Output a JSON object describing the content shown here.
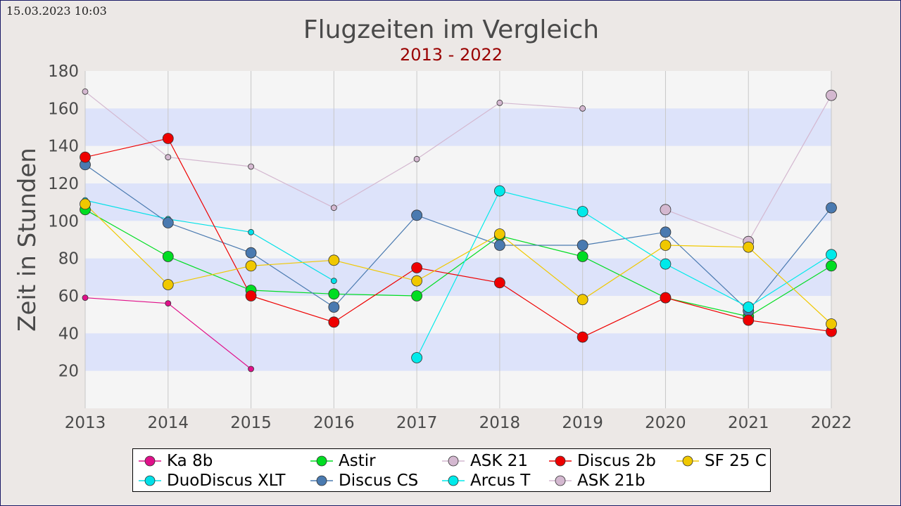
{
  "timestamp": "15.03.2023 10:03",
  "chart_data": {
    "type": "line",
    "title": "Flugzeiten im Vergleich",
    "subtitle": "2013 - 2022",
    "xlabel": "",
    "ylabel": "Zeit in Stunden",
    "categories": [
      "2013",
      "2014",
      "2015",
      "2016",
      "2017",
      "2018",
      "2019",
      "2020",
      "2021",
      "2022"
    ],
    "ylim": [
      0,
      180
    ],
    "yticks": [
      20,
      40,
      60,
      80,
      100,
      120,
      140,
      160,
      180
    ],
    "grid": "vertical lines, alternating horizontal bands",
    "legend_position": "bottom",
    "series": [
      {
        "name": "Ka 8b",
        "color": "#e0108a",
        "marker": "small",
        "values": [
          59,
          56,
          21,
          null,
          null,
          null,
          null,
          null,
          null,
          null
        ]
      },
      {
        "name": "DuoDiscus XLT",
        "color": "#00e0e8",
        "marker": "small",
        "values": [
          111,
          101,
          94,
          68,
          null,
          null,
          null,
          null,
          null,
          null
        ]
      },
      {
        "name": "Astir",
        "color": "#00dd22",
        "marker": "large",
        "values": [
          106,
          81,
          63,
          61,
          60,
          92,
          81,
          59,
          49,
          76
        ]
      },
      {
        "name": "Discus CS",
        "color": "#4a7ab0",
        "marker": "large",
        "values": [
          130,
          99,
          83,
          54,
          103,
          87,
          87,
          94,
          52,
          107
        ]
      },
      {
        "name": "ASK 21",
        "color": "#d4b8d0",
        "marker": "small",
        "values": [
          169,
          134,
          129,
          107,
          133,
          163,
          160,
          null,
          null,
          null
        ]
      },
      {
        "name": "Arcus T",
        "color": "#00eaea",
        "marker": "large",
        "values": [
          null,
          null,
          null,
          null,
          27,
          116,
          105,
          77,
          54,
          82
        ]
      },
      {
        "name": "Discus 2b",
        "color": "#ee0000",
        "marker": "large",
        "values": [
          134,
          144,
          60,
          46,
          75,
          67,
          38,
          59,
          47,
          41
        ]
      },
      {
        "name": "ASK 21b",
        "color": "#d4b8d0",
        "marker": "large",
        "values": [
          null,
          null,
          null,
          null,
          null,
          null,
          null,
          106,
          89,
          167
        ]
      },
      {
        "name": "SF 25 C",
        "color": "#f0c800",
        "marker": "large",
        "values": [
          109,
          66,
          76,
          79,
          68,
          93,
          58,
          87,
          86,
          45
        ]
      }
    ]
  },
  "legend": [
    {
      "label": "Ka 8b",
      "color": "#e0108a"
    },
    {
      "label": "Astir",
      "color": "#00dd22"
    },
    {
      "label": "ASK 21",
      "color": "#d4b8d0"
    },
    {
      "label": "Discus 2b",
      "color": "#ee0000"
    },
    {
      "label": "SF 25 C",
      "color": "#f0c800"
    },
    {
      "label": "DuoDiscus XLT",
      "color": "#00e0e8"
    },
    {
      "label": "Discus CS",
      "color": "#4a7ab0"
    },
    {
      "label": "Arcus T",
      "color": "#00eaea"
    },
    {
      "label": "ASK 21b",
      "color": "#d4b8d0"
    }
  ]
}
